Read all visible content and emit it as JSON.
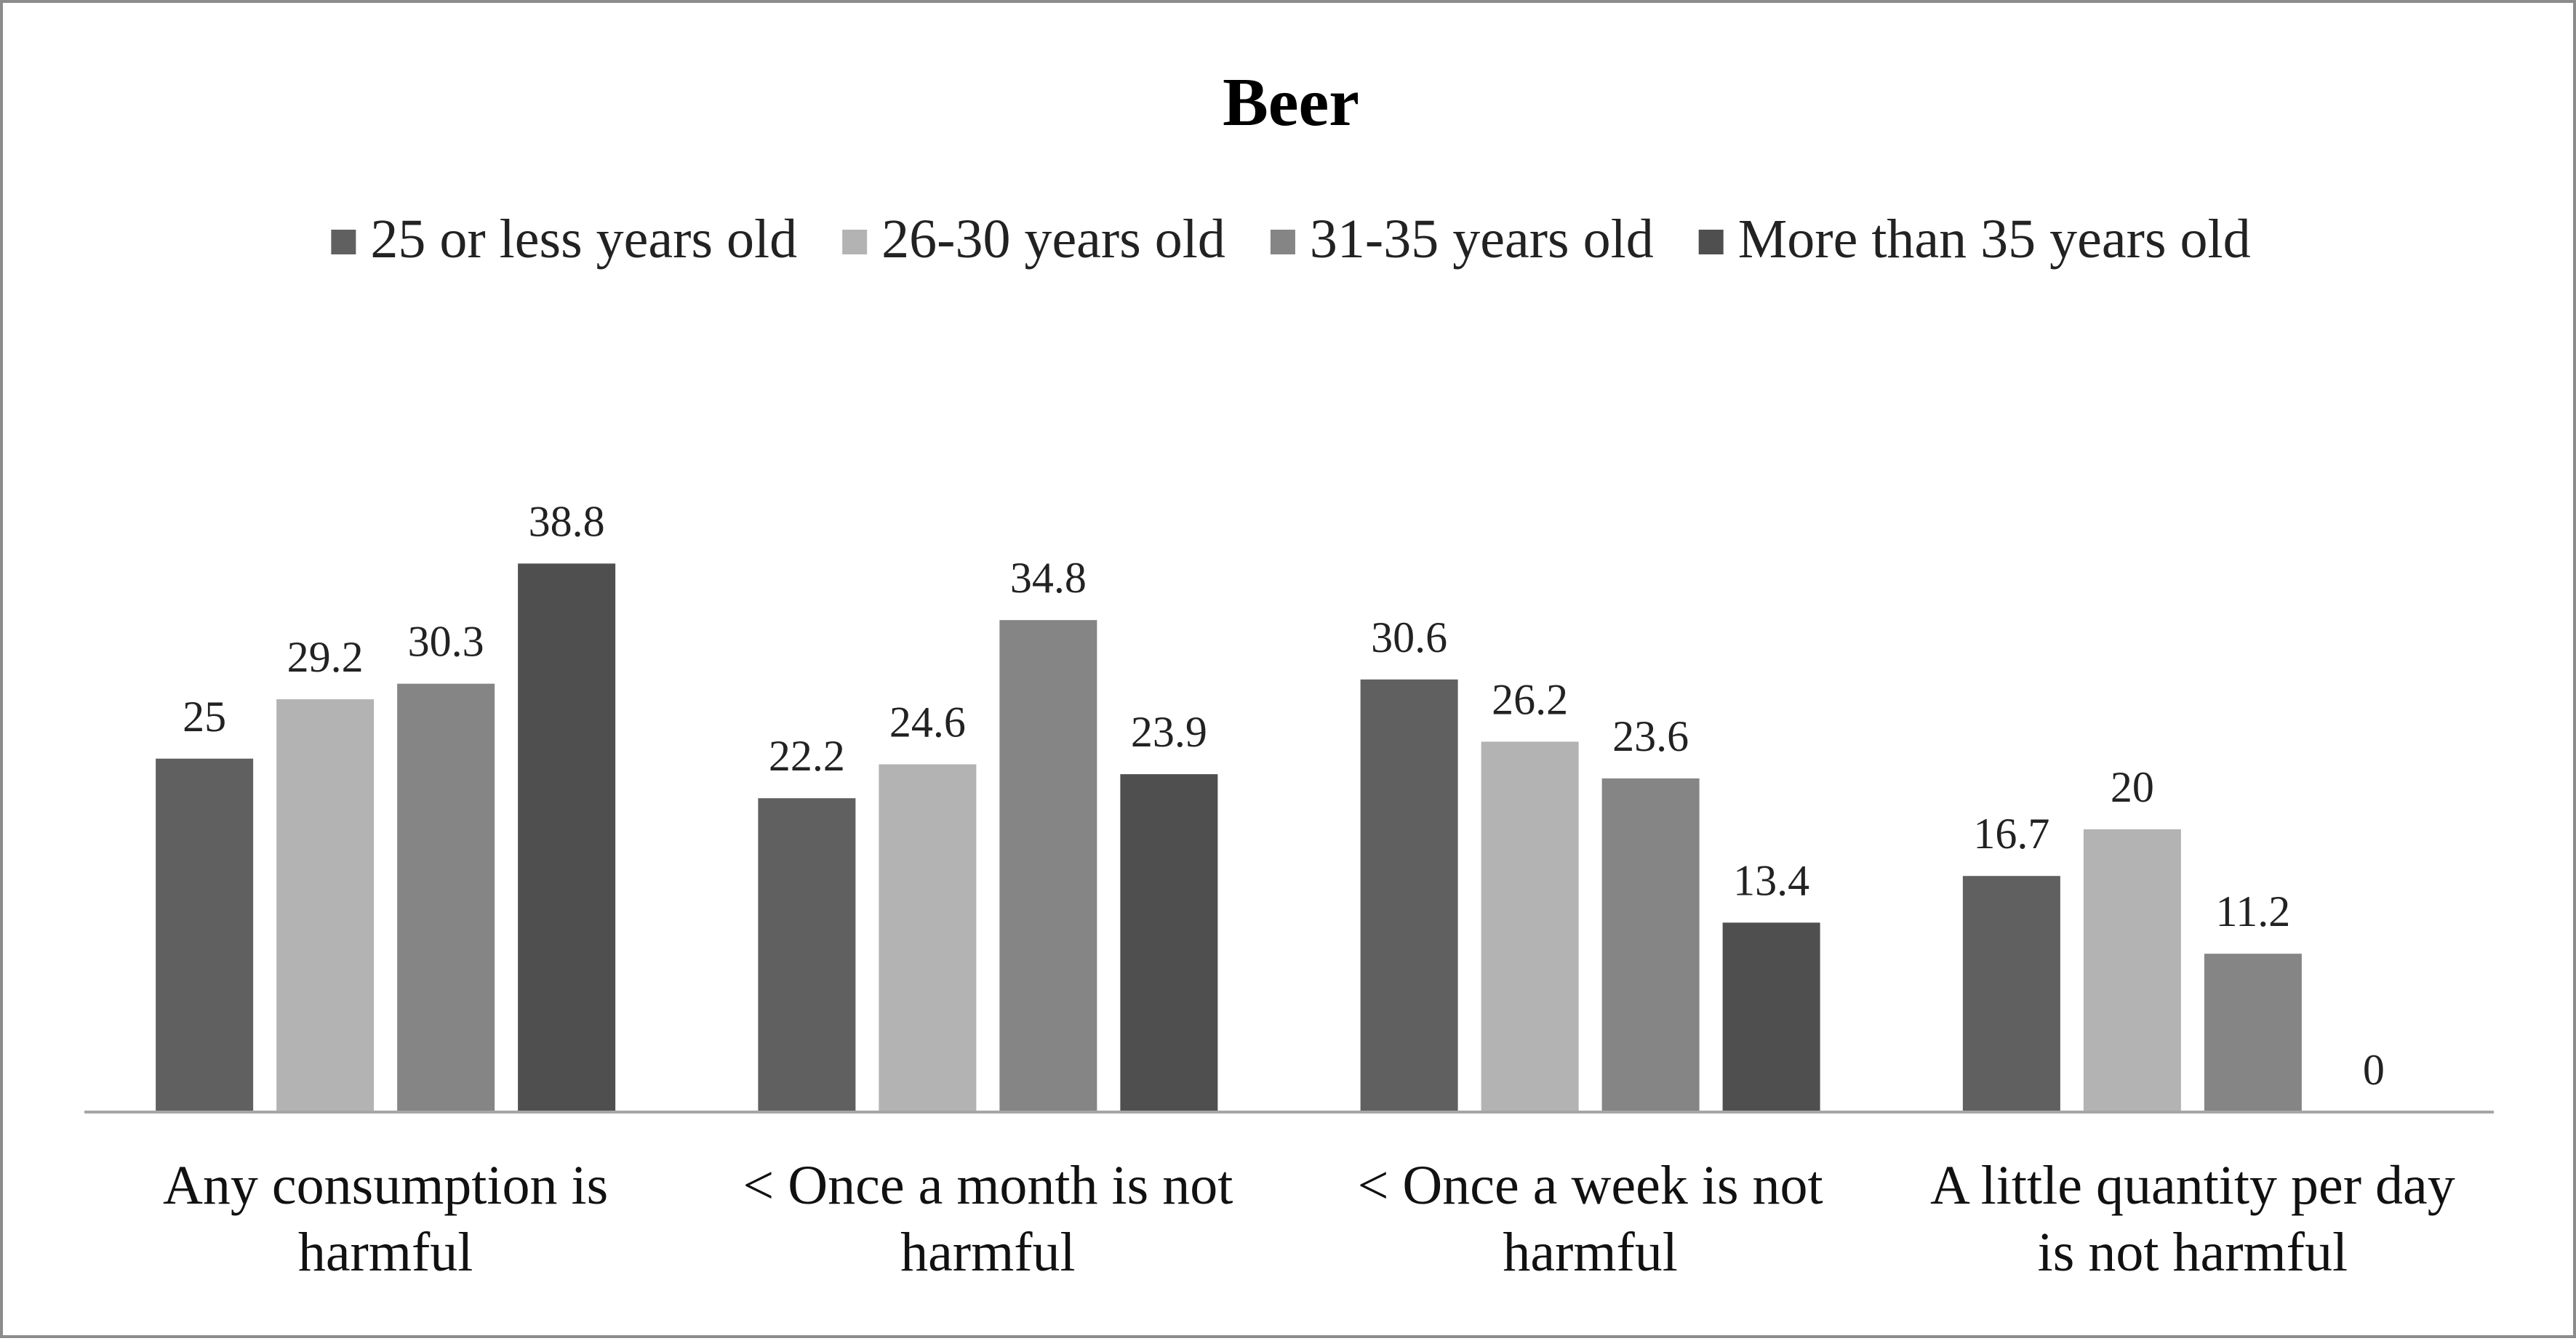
{
  "chart_data": {
    "type": "bar",
    "title": "Beer",
    "xlabel": "",
    "ylabel": "",
    "ylim": [
      0,
      45
    ],
    "grid": false,
    "legend_position": "top",
    "categories": [
      [
        "Any consumption is",
        "harmful"
      ],
      [
        "< Once a month  is not",
        "harmful"
      ],
      [
        "< Once a week  is not",
        "harmful"
      ],
      [
        "A little quantity per day",
        "is not harmful"
      ]
    ],
    "series": [
      {
        "name": "25 or less years old",
        "color": "#606060",
        "values": [
          25,
          22.2,
          30.6,
          16.7
        ]
      },
      {
        "name": "26-30 years old",
        "color": "#b3b3b3",
        "values": [
          29.2,
          24.6,
          26.2,
          20
        ]
      },
      {
        "name": "31-35 years old",
        "color": "#858585",
        "values": [
          30.3,
          34.8,
          23.6,
          11.2
        ]
      },
      {
        "name": "More than 35 years old",
        "color": "#4f4f4f",
        "values": [
          38.8,
          23.9,
          13.4,
          0
        ]
      }
    ],
    "data_labels": [
      [
        "25",
        "22.2",
        "30.6",
        "16.7"
      ],
      [
        "29.2",
        "24.6",
        "26.2",
        "20"
      ],
      [
        "30.3",
        "34.8",
        "23.6",
        "11.2"
      ],
      [
        "38.8",
        "23.9",
        "13.4",
        "0"
      ]
    ]
  }
}
